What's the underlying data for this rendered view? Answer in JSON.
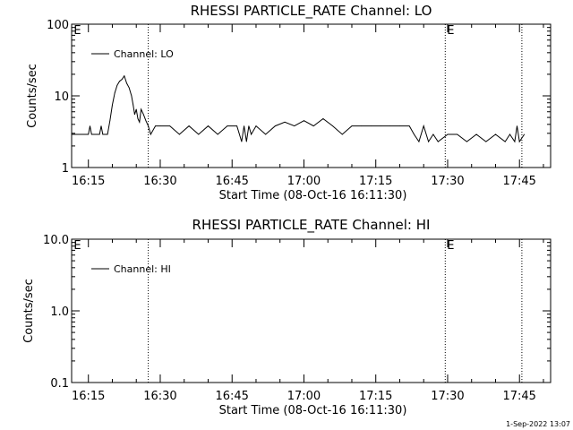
{
  "footer_timestamp": "1-Sep-2022 13:07",
  "chart_data": [
    {
      "type": "line",
      "title": "RHESSI PARTICLE_RATE Channel: LO",
      "xlabel": "Start Time (08-Oct-16 16:11:30)",
      "ylabel": "Counts/sec",
      "yscale": "log",
      "ylim": [
        1,
        100
      ],
      "yticks": [
        {
          "value": 1,
          "label": "1"
        },
        {
          "value": 10,
          "label": "10"
        },
        {
          "value": 100,
          "label": "100"
        }
      ],
      "xlim": [
        "16:11:30",
        "17:51:30"
      ],
      "xticks": [
        "16:15",
        "16:30",
        "16:45",
        "17:00",
        "17:15",
        "17:30",
        "17:45"
      ],
      "vlines": [
        "16:27:30",
        "17:29:30",
        "17:45:30"
      ],
      "e_markers": [
        "16:11:45",
        "17:29:40"
      ],
      "legend": {
        "label": "Channel: LO",
        "placement": "top-left"
      },
      "series": [
        {
          "name": "Channel: LO",
          "x": [
            "16:11:30",
            "16:15:00",
            "16:15:20",
            "16:15:40",
            "16:16:00",
            "16:16:20",
            "16:16:40",
            "16:17:00",
            "16:17:20",
            "16:17:40",
            "16:18:00",
            "16:18:30",
            "16:19:00",
            "16:19:30",
            "16:20:00",
            "16:20:30",
            "16:21:00",
            "16:21:30",
            "16:22:00",
            "16:22:30",
            "16:23:00",
            "16:23:30",
            "16:24:00",
            "16:24:20",
            "16:24:40",
            "16:25:00",
            "16:25:20",
            "16:25:40",
            "16:26:00",
            "16:26:30",
            "16:27:00",
            "16:27:30",
            "16:28:00",
            "16:29:00",
            "16:30:00",
            "16:32:00",
            "16:34:00",
            "16:36:00",
            "16:38:00",
            "16:40:00",
            "16:42:00",
            "16:44:00",
            "16:46:00",
            "16:47:00",
            "16:47:30",
            "16:48:00",
            "16:48:30",
            "16:49:00",
            "16:50:00",
            "16:52:00",
            "16:54:00",
            "16:56:00",
            "16:58:00",
            "17:00:00",
            "17:02:00",
            "17:04:00",
            "17:06:00",
            "17:08:00",
            "17:10:00",
            "17:12:00",
            "17:14:00",
            "17:16:00",
            "17:18:00",
            "17:20:00",
            "17:22:00",
            "17:23:00",
            "17:24:00",
            "17:25:00",
            "17:26:00",
            "17:27:00",
            "17:28:00",
            "17:30:00",
            "17:32:00",
            "17:34:00",
            "17:36:00",
            "17:38:00",
            "17:40:00",
            "17:42:00",
            "17:43:00",
            "17:44:00",
            "17:44:30",
            "17:45:00",
            "17:46:00"
          ],
          "values": [
            2.9,
            2.9,
            3.8,
            2.9,
            2.9,
            2.9,
            2.9,
            2.9,
            2.9,
            3.8,
            2.9,
            2.9,
            2.9,
            4.5,
            7.5,
            11,
            14,
            16,
            17,
            19,
            15,
            13,
            10,
            7.5,
            5.5,
            6.5,
            4.8,
            4.3,
            6.5,
            5.5,
            4.5,
            3.8,
            2.9,
            3.8,
            3.8,
            3.8,
            2.9,
            3.8,
            2.9,
            3.8,
            2.9,
            3.8,
            3.8,
            2.3,
            3.8,
            2.3,
            3.8,
            2.9,
            3.8,
            2.9,
            3.8,
            4.3,
            3.8,
            4.5,
            3.8,
            4.8,
            3.8,
            2.9,
            3.8,
            3.8,
            3.8,
            3.8,
            3.8,
            3.8,
            3.8,
            2.9,
            2.3,
            3.8,
            2.3,
            2.9,
            2.3,
            2.9,
            2.9,
            2.3,
            2.9,
            2.3,
            2.9,
            2.3,
            2.9,
            2.3,
            3.8,
            2.3,
            2.9
          ]
        }
      ]
    },
    {
      "type": "line",
      "title": "RHESSI PARTICLE_RATE Channel: HI",
      "xlabel": "Start Time (08-Oct-16 16:11:30)",
      "ylabel": "Counts/sec",
      "yscale": "log",
      "ylim": [
        0.1,
        10
      ],
      "yticks": [
        {
          "value": 0.1,
          "label": "0.1"
        },
        {
          "value": 1,
          "label": "1.0"
        },
        {
          "value": 10,
          "label": "10.0"
        }
      ],
      "xlim": [
        "16:11:30",
        "17:51:30"
      ],
      "xticks": [
        "16:15",
        "16:30",
        "16:45",
        "17:00",
        "17:15",
        "17:30",
        "17:45"
      ],
      "vlines": [
        "16:27:30",
        "17:29:30",
        "17:45:30"
      ],
      "e_markers": [
        "16:11:45",
        "17:29:40"
      ],
      "legend": {
        "label": "Channel: HI",
        "placement": "top-left"
      },
      "series": [
        {
          "name": "Channel: HI",
          "x": [],
          "values": []
        }
      ]
    }
  ]
}
